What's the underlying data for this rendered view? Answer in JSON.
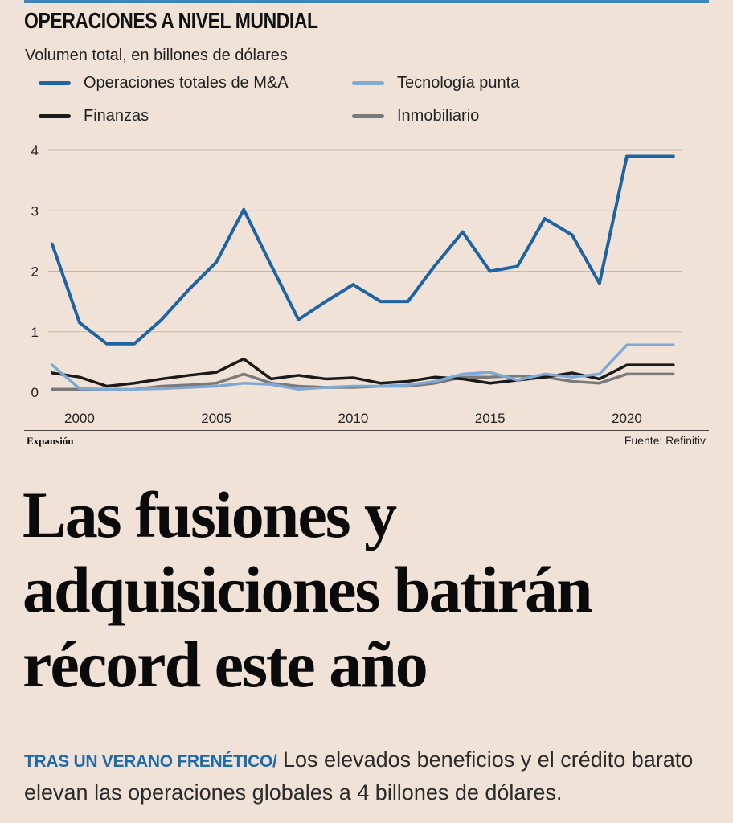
{
  "colors": {
    "background": "#f1e2d7",
    "accent": "#1f6aa8"
  },
  "chart_data": {
    "type": "line",
    "title": "OPERACIONES A NIVEL MUNDIAL",
    "subtitle": "Volumen total, en billones de dólares",
    "x": [
      1999,
      2000,
      2001,
      2002,
      2003,
      2004,
      2005,
      2006,
      2007,
      2008,
      2009,
      2010,
      2011,
      2012,
      2013,
      2014,
      2015,
      2016,
      2017,
      2018,
      2019,
      2020,
      2021
    ],
    "xticks": [
      "2000",
      "2005",
      "2010",
      "2015",
      "2020"
    ],
    "yticks": [
      "0",
      "1",
      "2",
      "3",
      "4"
    ],
    "ylim": [
      0,
      4
    ],
    "grid": true,
    "legend_position": "top",
    "series": [
      {
        "name": "Operaciones totales de M&A",
        "color": "#1f64a2",
        "values": [
          2.45,
          1.15,
          0.8,
          0.8,
          1.2,
          1.7,
          2.15,
          3.02,
          2.1,
          1.2,
          1.5,
          1.78,
          1.5,
          1.5,
          2.1,
          2.65,
          2.0,
          2.08,
          2.87,
          2.6,
          1.8,
          3.9,
          3.9
        ]
      },
      {
        "name": "Tecnología punta",
        "color": "#7ea9d4",
        "values": [
          0.45,
          0.06,
          0.05,
          0.05,
          0.06,
          0.08,
          0.1,
          0.15,
          0.13,
          0.05,
          0.08,
          0.1,
          0.1,
          0.12,
          0.18,
          0.3,
          0.33,
          0.2,
          0.3,
          0.25,
          0.3,
          0.78,
          0.78
        ]
      },
      {
        "name": "Finanzas",
        "color": "#1a1a1a",
        "values": [
          0.32,
          0.25,
          0.1,
          0.15,
          0.22,
          0.28,
          0.33,
          0.55,
          0.22,
          0.28,
          0.22,
          0.24,
          0.15,
          0.18,
          0.25,
          0.22,
          0.15,
          0.2,
          0.25,
          0.32,
          0.22,
          0.45,
          0.45
        ]
      },
      {
        "name": "Inmobiliario",
        "color": "#7a7a7a",
        "values": [
          0.05,
          0.05,
          0.05,
          0.05,
          0.1,
          0.12,
          0.15,
          0.3,
          0.15,
          0.1,
          0.08,
          0.08,
          0.1,
          0.1,
          0.15,
          0.25,
          0.25,
          0.27,
          0.25,
          0.18,
          0.15,
          0.3,
          0.3
        ]
      }
    ]
  },
  "footer": {
    "brand": "Expansión",
    "source": "Fuente: Refinitiv"
  },
  "article": {
    "headline": "Las fusiones y adquisiciones batirán récord este año",
    "kicker": "TRAS UN VERANO FRENÉTICO/",
    "deck": " Los elevados beneficios y el crédito barato elevan las operaciones globales a 4 billones de dólares."
  }
}
